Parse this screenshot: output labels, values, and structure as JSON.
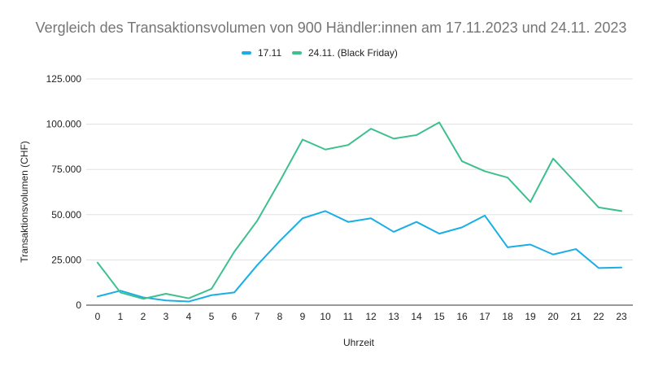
{
  "chart_data": {
    "type": "line",
    "title": "Vergleich des Transaktionsvolumen von 900 Händler:innen am 17.11.2023 und 24.11. 2023",
    "xlabel": "Uhrzeit",
    "ylabel": "Transaktionsvolumen (CHF)",
    "x": [
      0,
      1,
      2,
      3,
      4,
      5,
      6,
      7,
      8,
      9,
      10,
      11,
      12,
      13,
      14,
      15,
      16,
      17,
      18,
      19,
      20,
      21,
      22,
      23
    ],
    "ylim": [
      0,
      125000
    ],
    "yticks": [
      0,
      25000,
      50000,
      75000,
      100000,
      125000
    ],
    "ytick_labels": [
      "0",
      "25.000",
      "50.000",
      "75.000",
      "100.000",
      "125.000"
    ],
    "grid": true,
    "legend_position": "top-center",
    "series": [
      {
        "name": "17.11",
        "color": "#1aaee6",
        "values": [
          4800,
          8000,
          4300,
          2600,
          2000,
          5500,
          7000,
          22000,
          35500,
          48000,
          52000,
          46000,
          48000,
          40500,
          46000,
          39500,
          43000,
          49500,
          32000,
          33500,
          28000,
          31000,
          20500,
          20800
        ]
      },
      {
        "name": "24.11. (Black Friday)",
        "color": "#3ec08e",
        "values": [
          23500,
          7000,
          3500,
          6300,
          3800,
          9000,
          29500,
          46500,
          68500,
          91500,
          86000,
          88500,
          97500,
          92000,
          94000,
          101000,
          79500,
          74000,
          70500,
          57000,
          81000,
          67500,
          54000,
          52000
        ]
      }
    ]
  }
}
